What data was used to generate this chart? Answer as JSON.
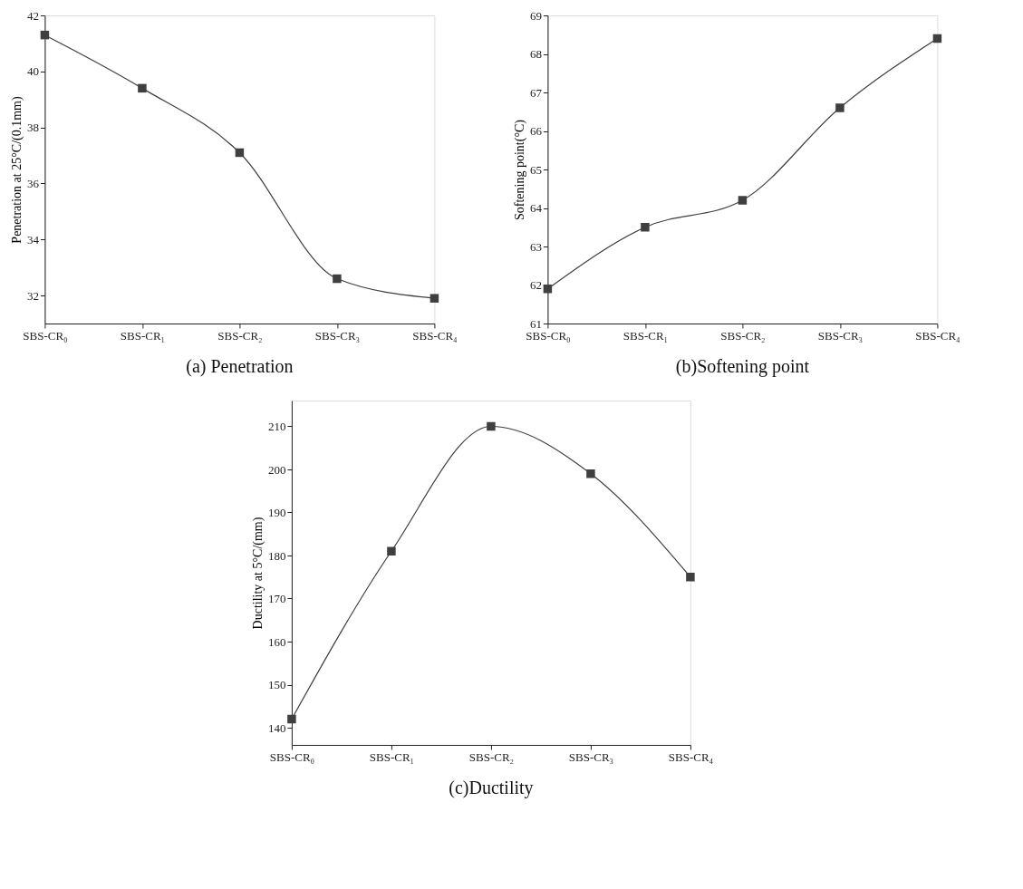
{
  "chart_data": [
    {
      "type": "line",
      "title": "(a) Penetration",
      "ylabel": "Penetration at 25°C/(0.1mm)",
      "categories": [
        "SBS-CR₀",
        "SBS-CR₁",
        "SBS-CR₂",
        "SBS-CR₃",
        "SBS-CR₄"
      ],
      "series": [
        {
          "color": "#3f3f3f",
          "values": [
            41.3,
            39.4,
            37.1,
            32.6,
            31.9
          ]
        }
      ],
      "ylim": [
        31,
        42
      ],
      "yticks": [
        32,
        34,
        36,
        38,
        40,
        42
      ],
      "marker": "square",
      "line_style": "solid",
      "grid": false,
      "legend": false
    },
    {
      "type": "line",
      "title": "(b)Softening point",
      "ylabel": "Softening point(°C)",
      "categories": [
        "SBS-CR₀",
        "SBS-CR₁",
        "SBS-CR₂",
        "SBS-CR₃",
        "SBS-CR₄"
      ],
      "series": [
        {
          "color": "#3f3f3f",
          "values": [
            61.9,
            63.5,
            64.2,
            66.6,
            68.4
          ]
        }
      ],
      "ylim": [
        61,
        69
      ],
      "yticks": [
        61,
        62,
        63,
        64,
        65,
        66,
        67,
        68,
        69
      ],
      "marker": "square",
      "line_style": "solid",
      "grid": false,
      "legend": false
    },
    {
      "type": "line",
      "title": "(c)Ductility",
      "ylabel": "Ductility at 5°C/(mm)",
      "categories": [
        "SBS-CR₀",
        "SBS-CR₁",
        "SBS-CR₂",
        "SBS-CR₃",
        "SBS-CR₄"
      ],
      "series": [
        {
          "color": "#3f3f3f",
          "values": [
            142,
            181,
            210,
            199,
            175
          ]
        }
      ],
      "ylim": [
        136,
        216
      ],
      "yticks": [
        140,
        150,
        160,
        170,
        180,
        190,
        200,
        210
      ],
      "marker": "square",
      "line_style": "solid",
      "grid": false,
      "legend": false
    }
  ]
}
